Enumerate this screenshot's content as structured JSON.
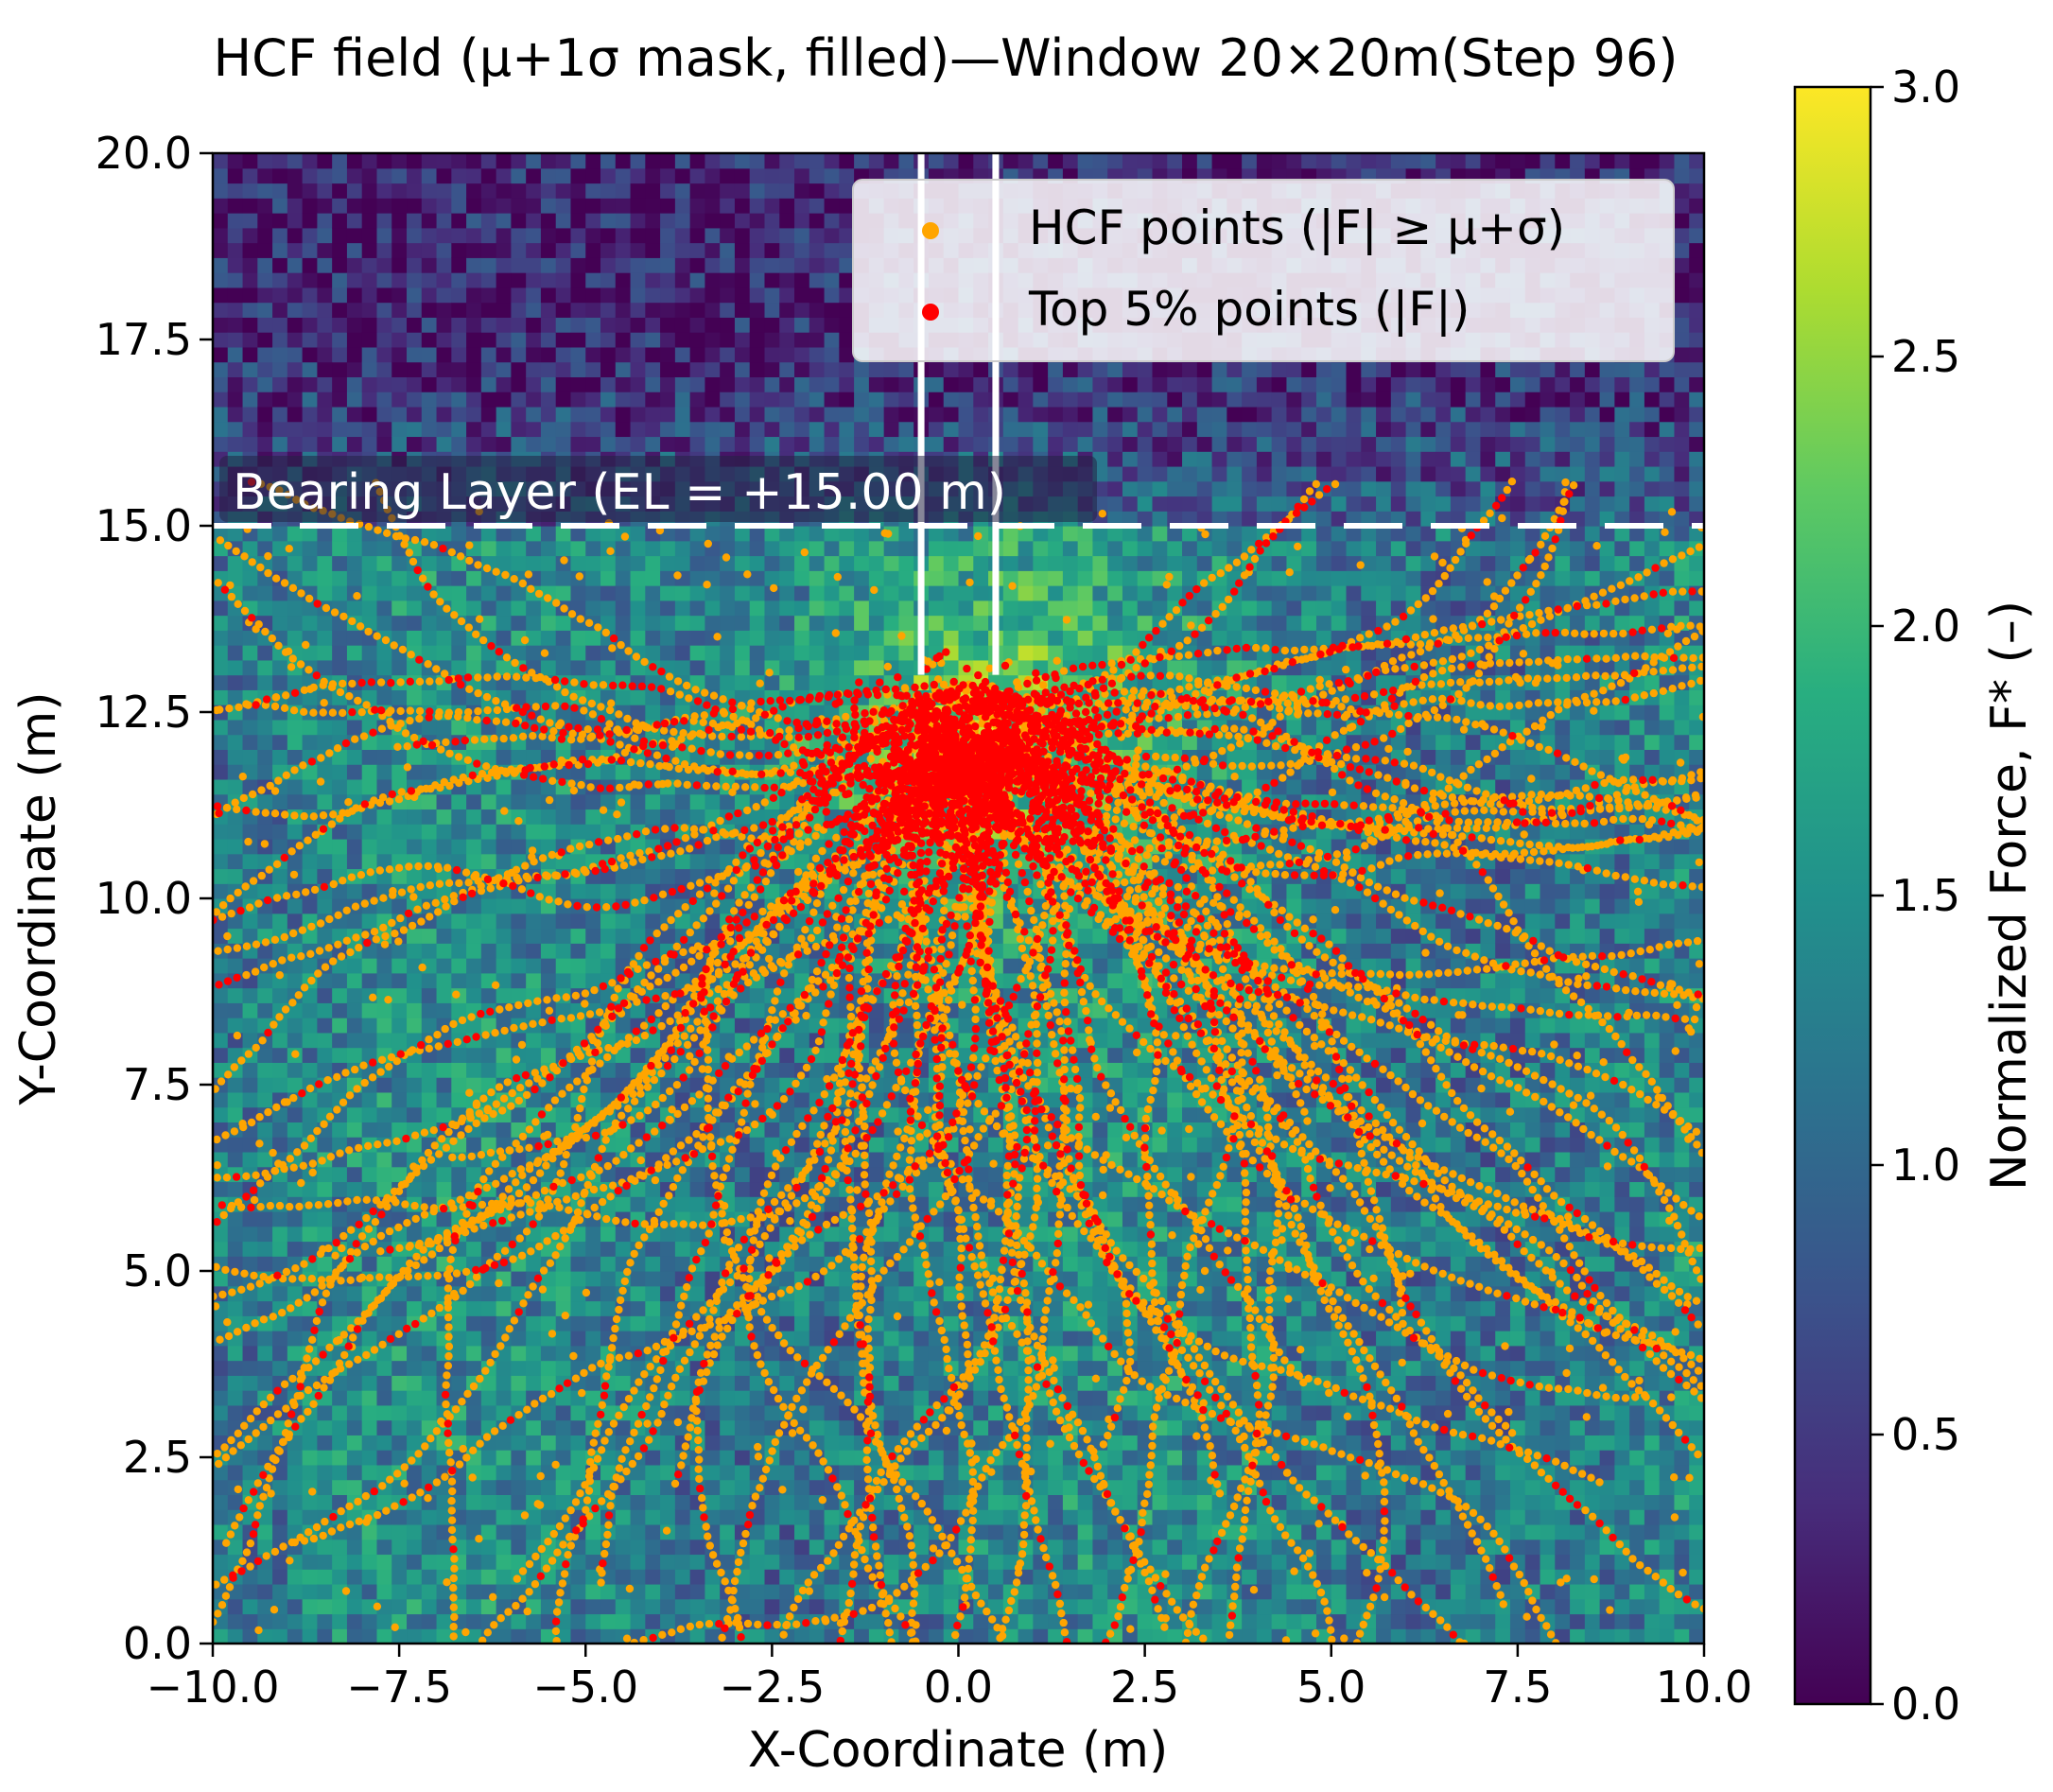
{
  "chart_data": {
    "type": "heatmap",
    "title": "HCF field (μ+1σ mask, filled)—Window 20×20m(Step 96)",
    "xlabel": "X-Coordinate (m)",
    "ylabel": "Y-Coordinate (m)",
    "xlim": [
      -10.0,
      10.0
    ],
    "ylim": [
      0.0,
      20.0
    ],
    "x_ticks": [
      -10.0,
      -7.5,
      -5.0,
      -2.5,
      0.0,
      2.5,
      5.0,
      7.5,
      10.0
    ],
    "x_tick_labels": [
      "−10.0",
      "−7.5",
      "−5.0",
      "−2.5",
      "0.0",
      "2.5",
      "5.0",
      "7.5",
      "10.0"
    ],
    "y_ticks": [
      0.0,
      2.5,
      5.0,
      7.5,
      10.0,
      12.5,
      15.0,
      17.5,
      20.0
    ],
    "y_tick_labels": [
      "0.0",
      "2.5",
      "5.0",
      "7.5",
      "10.0",
      "12.5",
      "15.0",
      "17.5",
      "20.0"
    ],
    "grid": false,
    "legend_position": "top-right",
    "colorbar": {
      "label": "Normalized Force, F* (–)",
      "range": [
        0.0,
        3.0
      ],
      "ticks": [
        0.0,
        0.5,
        1.0,
        1.5,
        2.0,
        2.5,
        3.0
      ],
      "tick_labels": [
        "0.0",
        "0.5",
        "1.0",
        "1.5",
        "2.0",
        "2.5",
        "3.0"
      ],
      "colormap": "viridis",
      "colormap_stops": [
        "#440154",
        "#472d7b",
        "#3b528b",
        "#2c728e",
        "#21918c",
        "#28ae80",
        "#5ec962",
        "#addc30",
        "#fde725"
      ]
    },
    "heatmap": {
      "description_grid": "approx. 100 x 100 cells",
      "typical_value_above_bearing_layer": 0.3,
      "typical_value_below_bearing_layer": 1.3,
      "peak_region_center": [
        0.0,
        12.3
      ],
      "peak_value": 3.0
    },
    "series": [
      {
        "name": "HCF points (|F| ≥ μ+σ)",
        "type": "scatter",
        "color": "#ffa500",
        "distribution": "dense branching chains radiating downward from about (0.0, 12.5); spread over the whole window below y = 15.0"
      },
      {
        "name": "Top 5% points (|F|)",
        "type": "scatter",
        "color": "#ff0000",
        "distribution": "concentrated in the cluster around (0.0, 11.5) and along the main force chains fanning down to y ≈ 0"
      }
    ],
    "pile": {
      "left_edge_x": -0.5,
      "right_edge_x": 0.5,
      "top_y": 20.0,
      "tip_y": 13.0,
      "color": "#ffffff"
    },
    "bearing_layer": {
      "label": "Bearing Layer (EL = +15.00 m)",
      "elevation": 15.0,
      "line_style": "dashed",
      "color": "#ffffff"
    }
  }
}
